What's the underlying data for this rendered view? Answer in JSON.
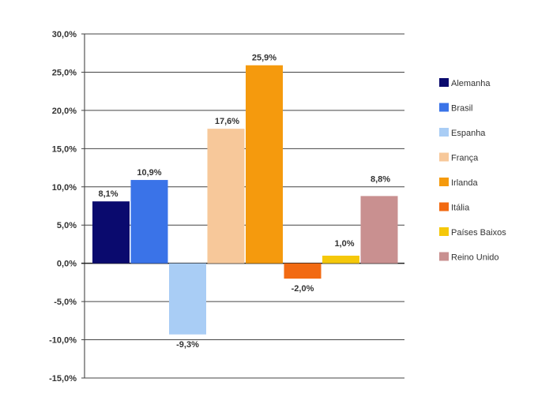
{
  "chart_data": {
    "type": "bar",
    "ylim": [
      -15,
      30
    ],
    "ytick_step": 5,
    "grid": true,
    "legend_position": "right",
    "ytick_labels": [
      "30,0%",
      "25,0%",
      "20,0%",
      "15,0%",
      "10,0%",
      "5,0%",
      "0,0%",
      "-5,0%",
      "-10,0%",
      "-15,0%"
    ],
    "series": [
      {
        "name": "Alemanha",
        "value": 8.1,
        "label": "8,1%",
        "color": "#0a0a6e"
      },
      {
        "name": "Brasil",
        "value": 10.9,
        "label": "10,9%",
        "color": "#3a73e8"
      },
      {
        "name": "Espanha",
        "value": -9.3,
        "label": "-9,3%",
        "color": "#a9cdf5"
      },
      {
        "name": "França",
        "value": 17.6,
        "label": "17,6%",
        "color": "#f7c89a"
      },
      {
        "name": "Irlanda",
        "value": 25.9,
        "label": "25,9%",
        "color": "#f59a0d"
      },
      {
        "name": "Itália",
        "value": -2.0,
        "label": "-2,0%",
        "color": "#f26a12"
      },
      {
        "name": "Países Baixos",
        "value": 1.0,
        "label": "1,0%",
        "color": "#f5c80a"
      },
      {
        "name": "Reino Unido",
        "value": 8.8,
        "label": "8,8%",
        "color": "#c99090"
      }
    ]
  }
}
